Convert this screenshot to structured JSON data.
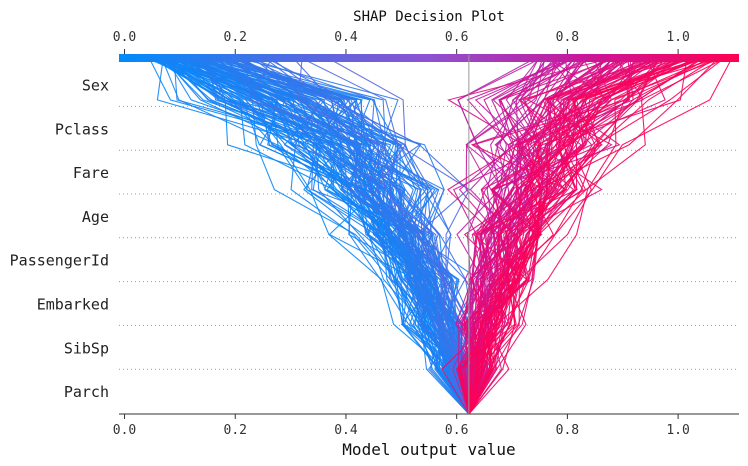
{
  "chart_data": {
    "type": "line",
    "title": "SHAP Decision Plot",
    "xlabel": "Model output value",
    "xlim": [
      -0.01,
      1.11
    ],
    "base_value": 0.622,
    "x_ticks": [
      0.0,
      0.2,
      0.4,
      0.6,
      0.8,
      1.0
    ],
    "x_tick_labels": [
      "0.0",
      "0.2",
      "0.4",
      "0.6",
      "0.8",
      "1.0"
    ],
    "features": [
      "Sex",
      "Pclass",
      "Fare",
      "Age",
      "PassengerId",
      "Embarked",
      "SibSp",
      "Parch"
    ],
    "colorbar_range": [
      0.0,
      1.1
    ],
    "colors": {
      "low": "#008bfb",
      "high": "#ff0052",
      "grid": "#999999"
    },
    "series_count": 260,
    "series_note": "Each path: model output cumulative from base value (bottom) through Parch, SibSp, Embarked, PassengerId, Age, Fare, Pclass, Sex to final prediction (top)."
  }
}
